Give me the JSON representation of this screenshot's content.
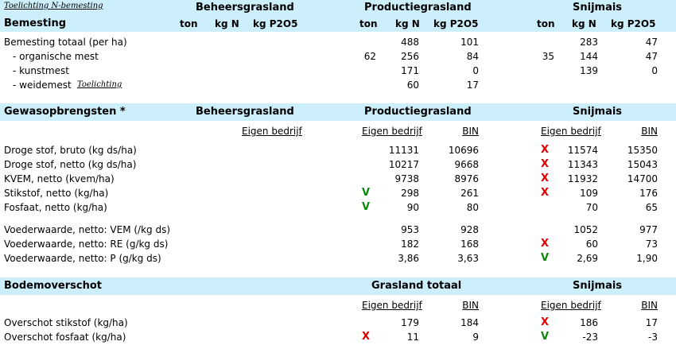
{
  "bemesting": {
    "link": "Toelichting N-bemesting",
    "title": "Bemesting",
    "groups": [
      "Beheersgrasland",
      "Productiegrasland",
      "Snijmais"
    ],
    "cols": [
      "ton",
      "kg N",
      "kg P2O5"
    ],
    "rows": [
      {
        "label": "Bemesting totaal (per ha)",
        "pg": [
          "",
          "488",
          "101"
        ],
        "sm": [
          "",
          "283",
          "47"
        ]
      },
      {
        "label": "- organische mest",
        "pg": [
          "62",
          "256",
          "84"
        ],
        "sm": [
          "35",
          "144",
          "47"
        ]
      },
      {
        "label": "- kunstmest",
        "pg": [
          "",
          "171",
          "0"
        ],
        "sm": [
          "",
          "139",
          "0"
        ]
      },
      {
        "label": "- weidemest",
        "link": "Toelichting",
        "pg": [
          "",
          "60",
          "17"
        ],
        "sm": [
          "",
          "",
          ""
        ]
      }
    ]
  },
  "gewas": {
    "title": "Gewasopbrengsten *",
    "groups": [
      "Beheersgrasland",
      "Productiegrasland",
      "Snijmais"
    ],
    "eigen_label": "Eigen bedrijf",
    "bin_label": "BIN",
    "rows": [
      {
        "label": "Droge stof, bruto (kg ds/ha)",
        "pg_mark": "",
        "pg_e": "11131",
        "pg_b": "10696",
        "sm_mark": "X",
        "sm_e": "11574",
        "sm_b": "15350"
      },
      {
        "label": "Droge stof, netto (kg ds/ha)",
        "pg_mark": "",
        "pg_e": "10217",
        "pg_b": "9668",
        "sm_mark": "X",
        "sm_e": "11343",
        "sm_b": "15043"
      },
      {
        "label": "KVEM, netto (kvem/ha)",
        "pg_mark": "",
        "pg_e": "9738",
        "pg_b": "8976",
        "sm_mark": "X",
        "sm_e": "11932",
        "sm_b": "14700"
      },
      {
        "label": "Stikstof, netto (kg/ha)",
        "pg_mark": "V",
        "pg_e": "298",
        "pg_b": "261",
        "sm_mark": "X",
        "sm_e": "109",
        "sm_b": "176"
      },
      {
        "label": "Fosfaat, netto (kg/ha)",
        "pg_mark": "V",
        "pg_e": "90",
        "pg_b": "80",
        "sm_mark": "",
        "sm_e": "70",
        "sm_b": "65"
      },
      {
        "label": "Voederwaarde, netto: VEM (/kg ds)",
        "pg_mark": "",
        "pg_e": "953",
        "pg_b": "928",
        "sm_mark": "",
        "sm_e": "1052",
        "sm_b": "977"
      },
      {
        "label": "Voederwaarde, netto: RE (g/kg ds)",
        "pg_mark": "",
        "pg_e": "182",
        "pg_b": "168",
        "sm_mark": "X",
        "sm_e": "60",
        "sm_b": "73"
      },
      {
        "label": "Voederwaarde, netto: P (g/kg ds)",
        "pg_mark": "",
        "pg_e": "3,86",
        "pg_b": "3,63",
        "sm_mark": "V",
        "sm_e": "2,69",
        "sm_b": "1,90"
      }
    ]
  },
  "bodem": {
    "title": "Bodemoverschot",
    "groups": [
      "Grasland totaal",
      "Snijmais"
    ],
    "eigen_label": "Eigen bedrijf",
    "bin_label": "BIN",
    "rows": [
      {
        "label": "Overschot stikstof (kg/ha)",
        "g_mark": "",
        "g_e": "179",
        "g_b": "184",
        "sm_mark": "X",
        "sm_e": "186",
        "sm_b": "17"
      },
      {
        "label": "Overschot fosfaat (kg/ha)",
        "g_mark": "X",
        "g_e": "11",
        "g_b": "9",
        "sm_mark": "V",
        "sm_e": "-23",
        "sm_b": "-3"
      }
    ]
  },
  "colors": {
    "band": "#cdeefb",
    "x_mark": "#e00000",
    "v_mark": "#0a8a0a"
  }
}
